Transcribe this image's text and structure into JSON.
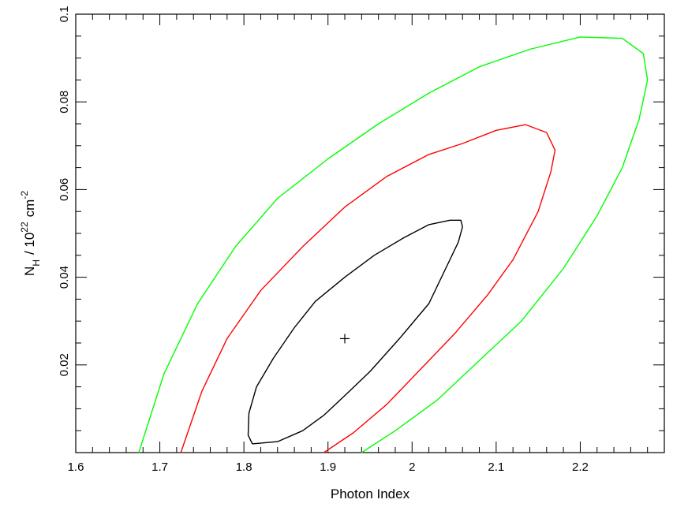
{
  "chart_data": {
    "type": "line",
    "xlabel": "Photon Index",
    "ylabel": {
      "base": "N",
      "base_sub": "H",
      "slash": "/ 10",
      "exp": "22",
      "unit": "cm",
      "unit_exp": "-2"
    },
    "xlim": [
      1.6,
      2.3
    ],
    "ylim": [
      0.0,
      0.1
    ],
    "x_ticks": [
      1.6,
      1.7,
      1.8,
      1.9,
      2.0,
      2.1,
      2.2
    ],
    "x_tick_labels": [
      "1.6",
      "1.7",
      "1.8",
      "1.9",
      "2",
      "2.1",
      "2.2"
    ],
    "y_ticks": [
      0.02,
      0.04,
      0.06,
      0.08,
      0.1
    ],
    "y_tick_labels": [
      "0.02",
      "0.04",
      "0.06",
      "0.08",
      "0.1"
    ],
    "x_minor_step": 0.02,
    "y_minor_step": 0.005,
    "grid": false,
    "best_fit": {
      "x": 1.92,
      "y": 0.026
    },
    "series": [
      {
        "color": "#000000",
        "x": [
          1.81,
          1.84,
          1.87,
          1.895,
          1.92,
          1.95,
          1.985,
          2.02,
          2.04,
          2.055,
          2.06,
          2.058,
          2.045,
          2.02,
          1.99,
          1.955,
          1.92,
          1.885,
          1.86,
          1.835,
          1.815,
          1.806,
          1.805,
          1.81
        ],
        "y": [
          0.002,
          0.0025,
          0.005,
          0.0085,
          0.013,
          0.0185,
          0.026,
          0.034,
          0.042,
          0.048,
          0.0515,
          0.053,
          0.053,
          0.052,
          0.049,
          0.045,
          0.04,
          0.0345,
          0.0285,
          0.0215,
          0.015,
          0.009,
          0.004,
          0.002
        ]
      },
      {
        "color": "#ff0000",
        "x": [
          1.895,
          1.93,
          1.97,
          2.01,
          2.05,
          2.09,
          2.12,
          2.15,
          2.165,
          2.17,
          2.16,
          2.135,
          2.1,
          2.06,
          2.02,
          1.97,
          1.92,
          1.87,
          1.82,
          1.78,
          1.75,
          1.725
        ],
        "y": [
          0.0,
          0.0045,
          0.011,
          0.019,
          0.027,
          0.036,
          0.044,
          0.055,
          0.064,
          0.069,
          0.073,
          0.0748,
          0.0735,
          0.0705,
          0.068,
          0.063,
          0.056,
          0.047,
          0.037,
          0.026,
          0.014,
          0.0
        ]
      },
      {
        "color": "#00ff00",
        "x": [
          1.94,
          1.98,
          2.03,
          2.08,
          2.13,
          2.18,
          2.22,
          2.25,
          2.27,
          2.28,
          2.275,
          2.25,
          2.2,
          2.14,
          2.08,
          2.02,
          1.96,
          1.9,
          1.84,
          1.79,
          1.745,
          1.705,
          1.675
        ],
        "y": [
          0.0,
          0.005,
          0.012,
          0.021,
          0.03,
          0.042,
          0.054,
          0.065,
          0.076,
          0.085,
          0.091,
          0.0945,
          0.0948,
          0.092,
          0.088,
          0.082,
          0.075,
          0.067,
          0.058,
          0.047,
          0.034,
          0.018,
          0.0
        ]
      }
    ]
  }
}
